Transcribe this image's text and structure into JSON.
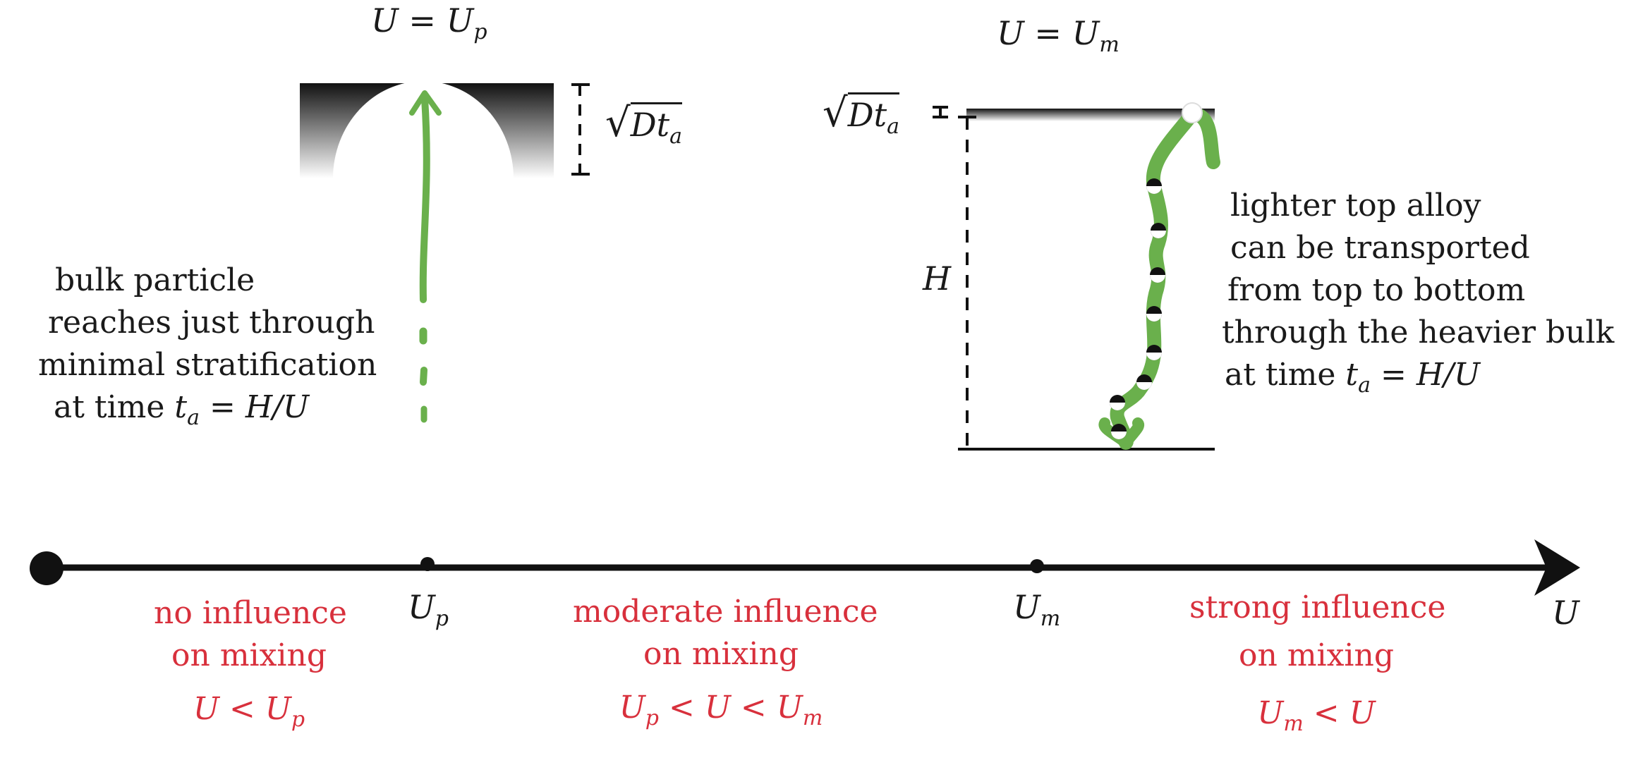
{
  "top_labels": {
    "left": {
      "lhs": "U",
      "eq": " = ",
      "rhs": "U",
      "rhs_sub": "p"
    },
    "right": {
      "lhs": "U",
      "eq": " = ",
      "rhs": "U",
      "rhs_sub": "m"
    }
  },
  "scale_labels": {
    "left_thickness": {
      "base": "Dt",
      "sub": "a"
    },
    "right_thickness": {
      "base": "Dt",
      "sub": "a"
    },
    "height": "H"
  },
  "descriptions": {
    "left": [
      "bulk particle",
      "reaches just through",
      "minimal stratification",
      "at time "
    ],
    "left_time": {
      "t": "t",
      "sub": "a",
      "rest": " = H/U"
    },
    "right": [
      "lighter top alloy",
      "can be transported",
      "from top to bottom",
      "through the heavier bulk",
      "at time "
    ],
    "right_time": {
      "t": "t",
      "sub": "a",
      "rest": " = H/U"
    }
  },
  "axis": {
    "label": "U",
    "ticks": [
      {
        "name": "U",
        "sub": "p"
      },
      {
        "name": "U",
        "sub": "m"
      }
    ]
  },
  "regimes": [
    {
      "line1": "no influence",
      "line2": "on mixing",
      "cond": "U < U",
      "cond_sub": "p",
      "cond_tail": ""
    },
    {
      "line1": "moderate influence",
      "line2": "on mixing",
      "cond": "U",
      "cond_sub": "p",
      "cond_tail": " < U < U",
      "cond_tail_sub": "m"
    },
    {
      "line1": "strong influence",
      "line2": "on mixing",
      "cond": "U",
      "cond_sub": "m",
      "cond_tail": " < U"
    }
  ],
  "colors": {
    "path_green": "#6ab04c",
    "regime_red": "#d8303c",
    "ink": "#111111"
  }
}
